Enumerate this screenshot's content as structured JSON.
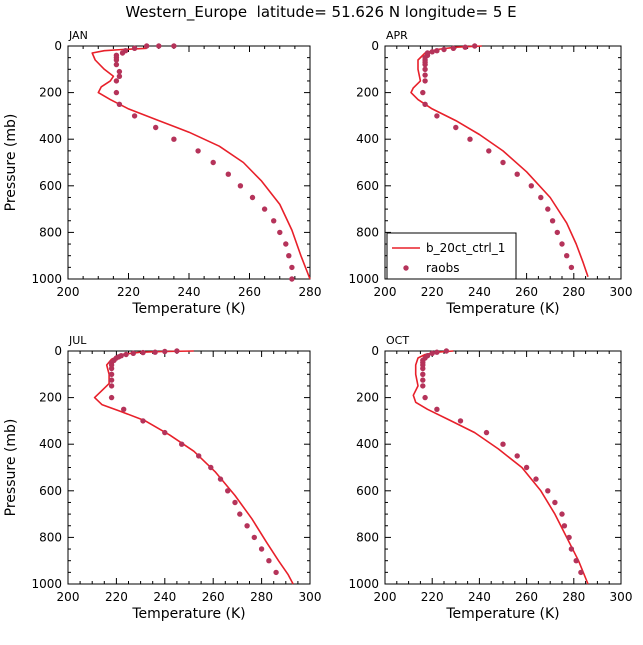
{
  "figure_title": "Western_Europe  latitude= 51.626 N longitude= 5 E",
  "legend": {
    "line_label": "b_20ct_ctrl_1",
    "points_label": "raobs"
  },
  "colors": {
    "model_line": "#e8202a",
    "raobs_points": "#b5335a"
  },
  "chart_data": [
    {
      "type": "line",
      "panel": "JAN",
      "xlabel": "Temperature (K)",
      "ylabel": "Pressure (mb)",
      "xlim": [
        200,
        280
      ],
      "xticks": [
        200,
        220,
        240,
        260,
        280
      ],
      "ylim": [
        1000,
        0
      ],
      "yticks": [
        0,
        200,
        400,
        600,
        800,
        1000
      ],
      "series": [
        {
          "name": "b_20ct_ctrl_1",
          "kind": "line",
          "points": [
            [
              226,
              10
            ],
            [
              218,
              15
            ],
            [
              212,
              20
            ],
            [
              208,
              30
            ],
            [
              209,
              60
            ],
            [
              212,
              100
            ],
            [
              215,
              130
            ],
            [
              214,
              150
            ],
            [
              211,
              175
            ],
            [
              210,
              200
            ],
            [
              214,
              230
            ],
            [
              220,
              270
            ],
            [
              230,
              320
            ],
            [
              240,
              370
            ],
            [
              250,
              430
            ],
            [
              258,
              500
            ],
            [
              264,
              580
            ],
            [
              270,
              680
            ],
            [
              274,
              790
            ],
            [
              277,
              900
            ],
            [
              280,
              1000
            ]
          ]
        },
        {
          "name": "raobs",
          "kind": "points",
          "points": [
            [
              235,
              0
            ],
            [
              230,
              0
            ],
            [
              226,
              0
            ],
            [
              222,
              10
            ],
            [
              219,
              20
            ],
            [
              218,
              30
            ],
            [
              216,
              40
            ],
            [
              216,
              50
            ],
            [
              216,
              60
            ],
            [
              216,
              80
            ],
            [
              217,
              110
            ],
            [
              217,
              130
            ],
            [
              216,
              150
            ],
            [
              216,
              200
            ],
            [
              217,
              250
            ],
            [
              222,
              300
            ],
            [
              229,
              350
            ],
            [
              235,
              400
            ],
            [
              243,
              450
            ],
            [
              248,
              500
            ],
            [
              253,
              550
            ],
            [
              257,
              600
            ],
            [
              261,
              650
            ],
            [
              265,
              700
            ],
            [
              268,
              750
            ],
            [
              270,
              800
            ],
            [
              272,
              850
            ],
            [
              273,
              900
            ],
            [
              274,
              950
            ],
            [
              274,
              1000
            ]
          ]
        }
      ]
    },
    {
      "type": "line",
      "panel": "APR",
      "xlabel": "Temperature (K)",
      "ylabel": "",
      "xlim": [
        200,
        300
      ],
      "xticks": [
        200,
        220,
        240,
        260,
        280,
        300
      ],
      "ylim": [
        1000,
        0
      ],
      "yticks": [
        0,
        200,
        400,
        600,
        800,
        1000
      ],
      "series": [
        {
          "name": "b_20ct_ctrl_1",
          "kind": "line",
          "points": [
            [
              241,
              0
            ],
            [
              230,
              5
            ],
            [
              222,
              15
            ],
            [
              217,
              30
            ],
            [
              214,
              60
            ],
            [
              214,
              100
            ],
            [
              215,
              150
            ],
            [
              212,
              180
            ],
            [
              211,
              200
            ],
            [
              214,
              230
            ],
            [
              220,
              270
            ],
            [
              230,
              320
            ],
            [
              240,
              380
            ],
            [
              250,
              450
            ],
            [
              260,
              540
            ],
            [
              270,
              650
            ],
            [
              277,
              760
            ],
            [
              281,
              850
            ],
            [
              284,
              930
            ],
            [
              286,
              990
            ]
          ]
        },
        {
          "name": "raobs",
          "kind": "points",
          "points": [
            [
              238,
              0
            ],
            [
              234,
              5
            ],
            [
              229,
              10
            ],
            [
              225,
              15
            ],
            [
              222,
              20
            ],
            [
              220,
              25
            ],
            [
              218,
              30
            ],
            [
              218,
              40
            ],
            [
              217,
              50
            ],
            [
              217,
              60
            ],
            [
              217,
              70
            ],
            [
              217,
              80
            ],
            [
              217,
              100
            ],
            [
              217,
              125
            ],
            [
              217,
              150
            ],
            [
              216,
              200
            ],
            [
              217,
              250
            ],
            [
              222,
              300
            ],
            [
              230,
              350
            ],
            [
              236,
              400
            ],
            [
              244,
              450
            ],
            [
              250,
              500
            ],
            [
              256,
              550
            ],
            [
              262,
              600
            ],
            [
              266,
              650
            ],
            [
              269,
              700
            ],
            [
              271,
              750
            ],
            [
              273,
              800
            ],
            [
              275,
              850
            ],
            [
              277,
              900
            ],
            [
              279,
              950
            ]
          ]
        }
      ]
    },
    {
      "type": "line",
      "panel": "JUL",
      "xlabel": "Temperature (K)",
      "ylabel": "Pressure (mb)",
      "xlim": [
        200,
        300
      ],
      "xticks": [
        200,
        220,
        240,
        260,
        280,
        300
      ],
      "ylim": [
        1000,
        0
      ],
      "yticks": [
        0,
        200,
        400,
        600,
        800,
        1000
      ],
      "series": [
        {
          "name": "b_20ct_ctrl_1",
          "kind": "line",
          "points": [
            [
              252,
              0
            ],
            [
              240,
              2
            ],
            [
              230,
              5
            ],
            [
              222,
              15
            ],
            [
              218,
              35
            ],
            [
              216,
              60
            ],
            [
              217,
              100
            ],
            [
              217,
              140
            ],
            [
              214,
              170
            ],
            [
              211,
              200
            ],
            [
              214,
              230
            ],
            [
              222,
              260
            ],
            [
              232,
              300
            ],
            [
              242,
              360
            ],
            [
              252,
              430
            ],
            [
              261,
              520
            ],
            [
              269,
              620
            ],
            [
              276,
              720
            ],
            [
              282,
              820
            ],
            [
              287,
              900
            ],
            [
              291,
              960
            ],
            [
              293,
              1000
            ]
          ]
        },
        {
          "name": "raobs",
          "kind": "points",
          "points": [
            [
              245,
              0
            ],
            [
              240,
              2
            ],
            [
              236,
              5
            ],
            [
              231,
              7
            ],
            [
              227,
              10
            ],
            [
              224,
              15
            ],
            [
              222,
              20
            ],
            [
              221,
              25
            ],
            [
              220,
              30
            ],
            [
              219,
              40
            ],
            [
              218,
              50
            ],
            [
              218,
              60
            ],
            [
              218,
              75
            ],
            [
              218,
              100
            ],
            [
              218,
              125
            ],
            [
              218,
              150
            ],
            [
              218,
              200
            ],
            [
              223,
              250
            ],
            [
              231,
              300
            ],
            [
              240,
              350
            ],
            [
              247,
              400
            ],
            [
              254,
              450
            ],
            [
              259,
              500
            ],
            [
              263,
              550
            ],
            [
              266,
              600
            ],
            [
              269,
              650
            ],
            [
              271,
              700
            ],
            [
              274,
              750
            ],
            [
              277,
              800
            ],
            [
              280,
              850
            ],
            [
              283,
              900
            ],
            [
              286,
              950
            ]
          ]
        }
      ]
    },
    {
      "type": "line",
      "panel": "OCT",
      "xlabel": "Temperature (K)",
      "ylabel": "",
      "xlim": [
        200,
        300
      ],
      "xticks": [
        200,
        220,
        240,
        260,
        280,
        300
      ],
      "ylim": [
        1000,
        0
      ],
      "yticks": [
        0,
        200,
        400,
        600,
        800,
        1000
      ],
      "series": [
        {
          "name": "b_20ct_ctrl_1",
          "kind": "line",
          "points": [
            [
              229,
              0
            ],
            [
              222,
              5
            ],
            [
              217,
              15
            ],
            [
              214,
              30
            ],
            [
              213,
              60
            ],
            [
              213,
              100
            ],
            [
              214,
              150
            ],
            [
              212,
              190
            ],
            [
              213,
              220
            ],
            [
              218,
              250
            ],
            [
              228,
              300
            ],
            [
              238,
              350
            ],
            [
              248,
              420
            ],
            [
              258,
              500
            ],
            [
              266,
              600
            ],
            [
              272,
              700
            ],
            [
              277,
              800
            ],
            [
              282,
              900
            ],
            [
              286,
              1000
            ]
          ]
        },
        {
          "name": "raobs",
          "kind": "points",
          "points": [
            [
              226,
              0
            ],
            [
              222,
              5
            ],
            [
              220,
              10
            ],
            [
              218,
              20
            ],
            [
              217,
              30
            ],
            [
              216,
              40
            ],
            [
              216,
              50
            ],
            [
              216,
              60
            ],
            [
              216,
              75
            ],
            [
              216,
              100
            ],
            [
              216,
              125
            ],
            [
              216,
              150
            ],
            [
              217,
              200
            ],
            [
              222,
              250
            ],
            [
              232,
              300
            ],
            [
              243,
              350
            ],
            [
              250,
              400
            ],
            [
              256,
              450
            ],
            [
              260,
              500
            ],
            [
              264,
              550
            ],
            [
              269,
              600
            ],
            [
              272,
              650
            ],
            [
              275,
              700
            ],
            [
              276,
              750
            ],
            [
              278,
              800
            ],
            [
              279,
              850
            ],
            [
              281,
              900
            ],
            [
              283,
              950
            ]
          ]
        }
      ]
    }
  ]
}
